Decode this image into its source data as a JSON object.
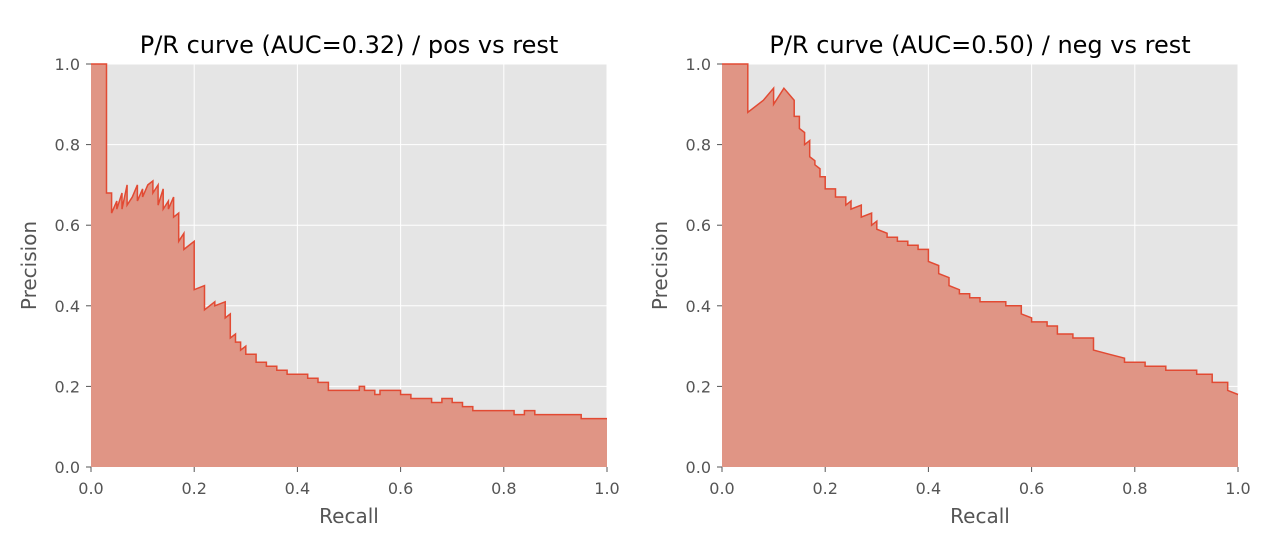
{
  "colors": {
    "plot_bg": "#e5e5e5",
    "grid": "#ffffff",
    "fill": "#e09585",
    "line": "#e24a33",
    "tick": "#555555"
  },
  "chart_data": [
    {
      "type": "area",
      "title": "P/R curve (AUC=0.32) / pos vs rest",
      "xlabel": "Recall",
      "ylabel": "Precision",
      "xlim": [
        0,
        1
      ],
      "ylim": [
        0,
        1
      ],
      "xticks": [
        "0.0",
        "0.2",
        "0.4",
        "0.6",
        "0.8",
        "1.0"
      ],
      "yticks": [
        "0.0",
        "0.2",
        "0.4",
        "0.6",
        "0.8",
        "1.0"
      ],
      "grid": true,
      "series": [
        {
          "x": [
            0.0,
            0.03,
            0.03,
            0.04,
            0.04,
            0.05,
            0.05,
            0.06,
            0.06,
            0.07,
            0.07,
            0.08,
            0.09,
            0.09,
            0.1,
            0.1,
            0.11,
            0.12,
            0.12,
            0.13,
            0.13,
            0.14,
            0.14,
            0.15,
            0.15,
            0.16,
            0.16,
            0.17,
            0.17,
            0.18,
            0.18,
            0.2,
            0.2,
            0.22,
            0.22,
            0.24,
            0.24,
            0.26,
            0.26,
            0.27,
            0.27,
            0.28,
            0.28,
            0.29,
            0.29,
            0.3,
            0.3,
            0.32,
            0.32,
            0.34,
            0.34,
            0.36,
            0.36,
            0.38,
            0.38,
            0.4,
            0.4,
            0.42,
            0.42,
            0.44,
            0.44,
            0.46,
            0.46,
            0.52,
            0.52,
            0.53,
            0.53,
            0.55,
            0.55,
            0.56,
            0.56,
            0.6,
            0.6,
            0.62,
            0.62,
            0.66,
            0.66,
            0.68,
            0.68,
            0.7,
            0.7,
            0.72,
            0.72,
            0.74,
            0.74,
            0.82,
            0.82,
            0.84,
            0.84,
            0.86,
            0.86,
            0.9,
            0.9,
            0.95,
            0.95,
            0.97,
            0.97,
            1.0
          ],
          "y": [
            1.0,
            1.0,
            0.68,
            0.68,
            0.63,
            0.66,
            0.64,
            0.68,
            0.64,
            0.7,
            0.65,
            0.67,
            0.7,
            0.66,
            0.69,
            0.67,
            0.7,
            0.71,
            0.68,
            0.7,
            0.65,
            0.69,
            0.64,
            0.66,
            0.64,
            0.67,
            0.62,
            0.63,
            0.56,
            0.58,
            0.54,
            0.56,
            0.44,
            0.45,
            0.39,
            0.41,
            0.4,
            0.41,
            0.37,
            0.38,
            0.32,
            0.33,
            0.31,
            0.31,
            0.29,
            0.3,
            0.28,
            0.28,
            0.26,
            0.26,
            0.25,
            0.25,
            0.24,
            0.24,
            0.23,
            0.23,
            0.23,
            0.23,
            0.22,
            0.22,
            0.21,
            0.21,
            0.19,
            0.19,
            0.2,
            0.2,
            0.19,
            0.19,
            0.18,
            0.18,
            0.19,
            0.19,
            0.18,
            0.18,
            0.17,
            0.17,
            0.16,
            0.16,
            0.17,
            0.17,
            0.16,
            0.16,
            0.15,
            0.15,
            0.14,
            0.14,
            0.13,
            0.13,
            0.14,
            0.14,
            0.13,
            0.13,
            0.13,
            0.13,
            0.12,
            0.12,
            0.12,
            0.12
          ]
        }
      ]
    },
    {
      "type": "area",
      "title": "P/R curve (AUC=0.50) / neg vs rest",
      "xlabel": "Recall",
      "ylabel": "Precision",
      "xlim": [
        0,
        1
      ],
      "ylim": [
        0,
        1
      ],
      "xticks": [
        "0.0",
        "0.2",
        "0.4",
        "0.6",
        "0.8",
        "1.0"
      ],
      "yticks": [
        "0.0",
        "0.2",
        "0.4",
        "0.6",
        "0.8",
        "1.0"
      ],
      "grid": true,
      "series": [
        {
          "x": [
            0.0,
            0.05,
            0.05,
            0.08,
            0.1,
            0.1,
            0.12,
            0.14,
            0.14,
            0.15,
            0.15,
            0.16,
            0.16,
            0.17,
            0.17,
            0.18,
            0.18,
            0.19,
            0.19,
            0.2,
            0.2,
            0.22,
            0.22,
            0.24,
            0.24,
            0.25,
            0.25,
            0.27,
            0.27,
            0.29,
            0.29,
            0.3,
            0.3,
            0.32,
            0.32,
            0.34,
            0.34,
            0.36,
            0.36,
            0.38,
            0.38,
            0.4,
            0.4,
            0.42,
            0.42,
            0.44,
            0.44,
            0.46,
            0.46,
            0.48,
            0.48,
            0.5,
            0.5,
            0.55,
            0.55,
            0.58,
            0.58,
            0.6,
            0.6,
            0.63,
            0.63,
            0.65,
            0.65,
            0.68,
            0.68,
            0.72,
            0.72,
            0.75,
            0.75,
            0.78,
            0.78,
            0.82,
            0.82,
            0.86,
            0.86,
            0.92,
            0.92,
            0.95,
            0.95,
            0.98,
            0.98,
            1.0
          ],
          "y": [
            1.0,
            1.0,
            0.88,
            0.91,
            0.94,
            0.9,
            0.94,
            0.91,
            0.87,
            0.87,
            0.84,
            0.83,
            0.8,
            0.81,
            0.77,
            0.76,
            0.75,
            0.74,
            0.72,
            0.72,
            0.69,
            0.69,
            0.67,
            0.67,
            0.65,
            0.66,
            0.64,
            0.65,
            0.62,
            0.63,
            0.6,
            0.61,
            0.59,
            0.58,
            0.57,
            0.57,
            0.56,
            0.56,
            0.55,
            0.55,
            0.54,
            0.54,
            0.51,
            0.5,
            0.48,
            0.47,
            0.45,
            0.44,
            0.43,
            0.43,
            0.42,
            0.42,
            0.41,
            0.41,
            0.4,
            0.4,
            0.38,
            0.37,
            0.36,
            0.36,
            0.35,
            0.35,
            0.33,
            0.33,
            0.32,
            0.32,
            0.29,
            0.28,
            0.28,
            0.27,
            0.26,
            0.26,
            0.25,
            0.25,
            0.24,
            0.24,
            0.23,
            0.23,
            0.21,
            0.21,
            0.19,
            0.18
          ]
        }
      ]
    }
  ]
}
